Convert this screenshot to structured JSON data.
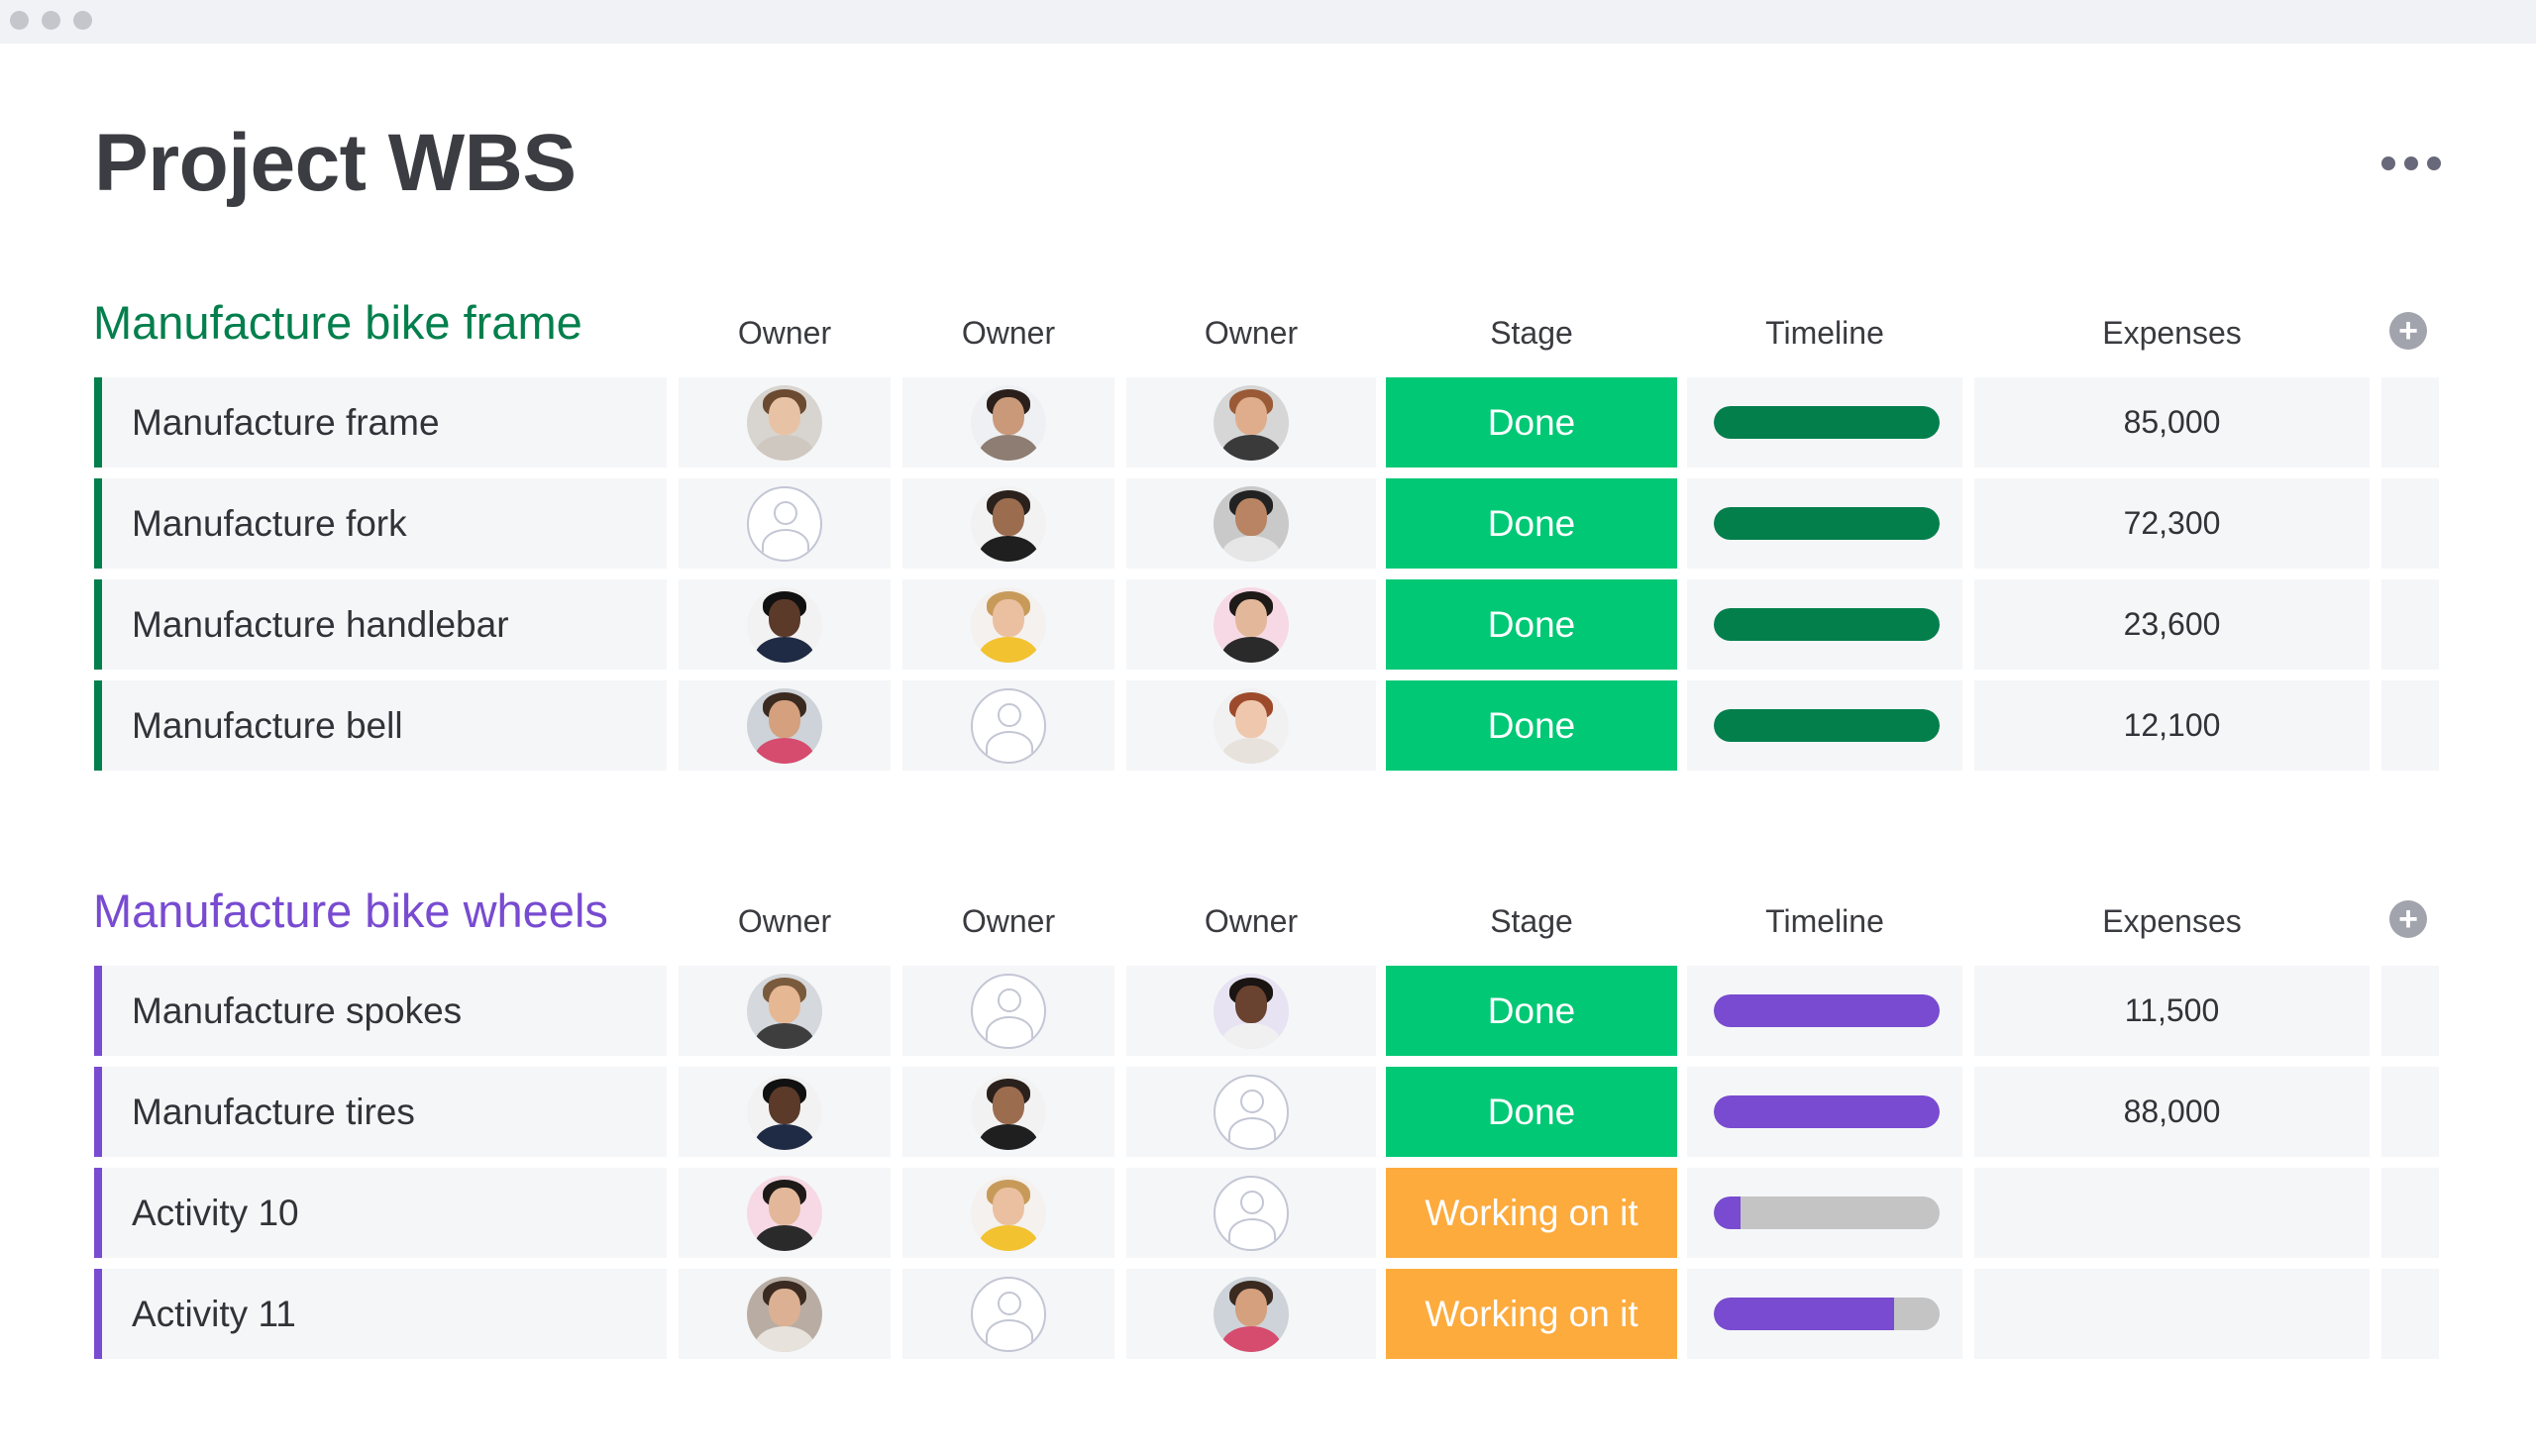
{
  "page": {
    "title": "Project WBS"
  },
  "colors": {
    "done": "#00c875",
    "working": "#fdab3d",
    "track": "#c4c4c4"
  },
  "groups": [
    {
      "title": "Manufacture bike frame",
      "color": "#037f4c",
      "columns": {
        "owner1": "Owner",
        "owner2": "Owner",
        "owner3": "Owner",
        "stage": "Stage",
        "timeline": "Timeline",
        "expenses": "Expenses"
      },
      "rows": [
        {
          "name": "Manufacture frame",
          "owners": [
            "woman-smiling",
            "woman-dark-hair",
            "man-red-beard"
          ],
          "stage": "Done",
          "stage_status": "done",
          "timeline_progress": 1.0,
          "expenses": "85,000"
        },
        {
          "name": "Manufacture fork",
          "owners": [
            "empty",
            "man-bald-beard",
            "man-turban"
          ],
          "stage": "Done",
          "stage_status": "done",
          "timeline_progress": 1.0,
          "expenses": "72,300"
        },
        {
          "name": "Manufacture handlebar",
          "owners": [
            "man-dark-skin",
            "woman-blonde",
            "woman-dark-bun"
          ],
          "stage": "Done",
          "stage_status": "done",
          "timeline_progress": 1.0,
          "expenses": "23,600"
        },
        {
          "name": "Manufacture bell",
          "owners": [
            "man-glasses-beard",
            "empty",
            "woman-red-hair"
          ],
          "stage": "Done",
          "stage_status": "done",
          "timeline_progress": 1.0,
          "expenses": "12,100"
        }
      ]
    },
    {
      "title": "Manufacture bike wheels",
      "color": "#784bd1",
      "columns": {
        "owner1": "Owner",
        "owner2": "Owner",
        "owner3": "Owner",
        "stage": "Stage",
        "timeline": "Timeline",
        "expenses": "Expenses"
      },
      "rows": [
        {
          "name": "Manufacture spokes",
          "owners": [
            "man-light-beard",
            "empty",
            "woman-curly-glasses"
          ],
          "stage": "Done",
          "stage_status": "done",
          "timeline_progress": 1.0,
          "expenses": "11,500"
        },
        {
          "name": "Manufacture tires",
          "owners": [
            "man-dark-skin",
            "man-bald-beard",
            "empty"
          ],
          "stage": "Done",
          "stage_status": "done",
          "timeline_progress": 1.0,
          "expenses": "88,000"
        },
        {
          "name": "Activity 10",
          "owners": [
            "woman-dark-bun",
            "woman-blonde",
            "empty"
          ],
          "stage": "Working on it",
          "stage_status": "working",
          "timeline_progress": 0.12,
          "expenses": ""
        },
        {
          "name": "Activity 11",
          "owners": [
            "woman-short-hair",
            "empty",
            "man-glasses-beard"
          ],
          "stage": "Working on it",
          "stage_status": "working",
          "timeline_progress": 0.8,
          "expenses": ""
        }
      ]
    }
  ]
}
